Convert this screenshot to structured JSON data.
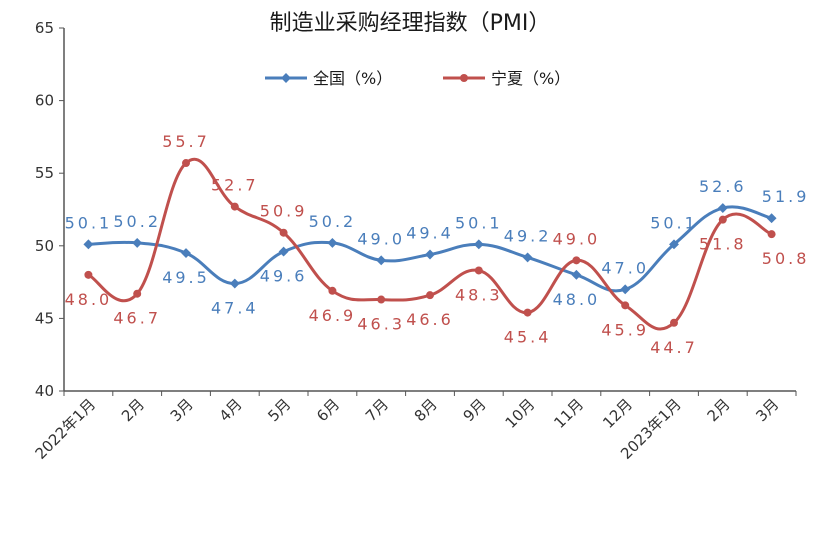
{
  "chart_data": {
    "type": "line",
    "title": "制造业采购经理指数（PMI）",
    "categories": [
      "2022年1月",
      "2月",
      "3月",
      "4月",
      "5月",
      "6月",
      "7月",
      "8月",
      "9月",
      "10月",
      "11月",
      "12月",
      "2023年1月",
      "2月",
      "3月"
    ],
    "series": [
      {
        "name": "全国（%）",
        "color": "#4a7ebb",
        "values": [
          50.1,
          50.2,
          49.5,
          47.4,
          49.6,
          50.2,
          49.0,
          49.4,
          50.1,
          49.2,
          48.0,
          47.0,
          50.1,
          52.6,
          51.9
        ],
        "labels": [
          "50.1",
          "50.2",
          "49.5",
          "47.4",
          "49.6",
          "50.2",
          "49.0",
          "49.4",
          "50.1",
          "49.2",
          "48.0",
          "47.0",
          "50.1",
          "52.6",
          "51.9"
        ]
      },
      {
        "name": "宁夏（%）",
        "color": "#c0504d",
        "values": [
          48.0,
          46.7,
          55.7,
          52.7,
          50.9,
          46.9,
          46.3,
          46.6,
          48.3,
          45.4,
          49.0,
          45.9,
          44.7,
          51.8,
          50.8
        ],
        "labels": [
          "48.0",
          "46.7",
          "55.7",
          "52.7",
          "50.9",
          "46.9",
          "46.3",
          "46.6",
          "48.3",
          "45.4",
          "49.0",
          "45.9",
          "44.7",
          "51.8",
          "50.8"
        ]
      }
    ],
    "ylim": [
      40,
      65
    ],
    "yticks": [
      "40",
      "45",
      "50",
      "55",
      "60",
      "65"
    ],
    "legend": "top-center",
    "grid": false
  }
}
